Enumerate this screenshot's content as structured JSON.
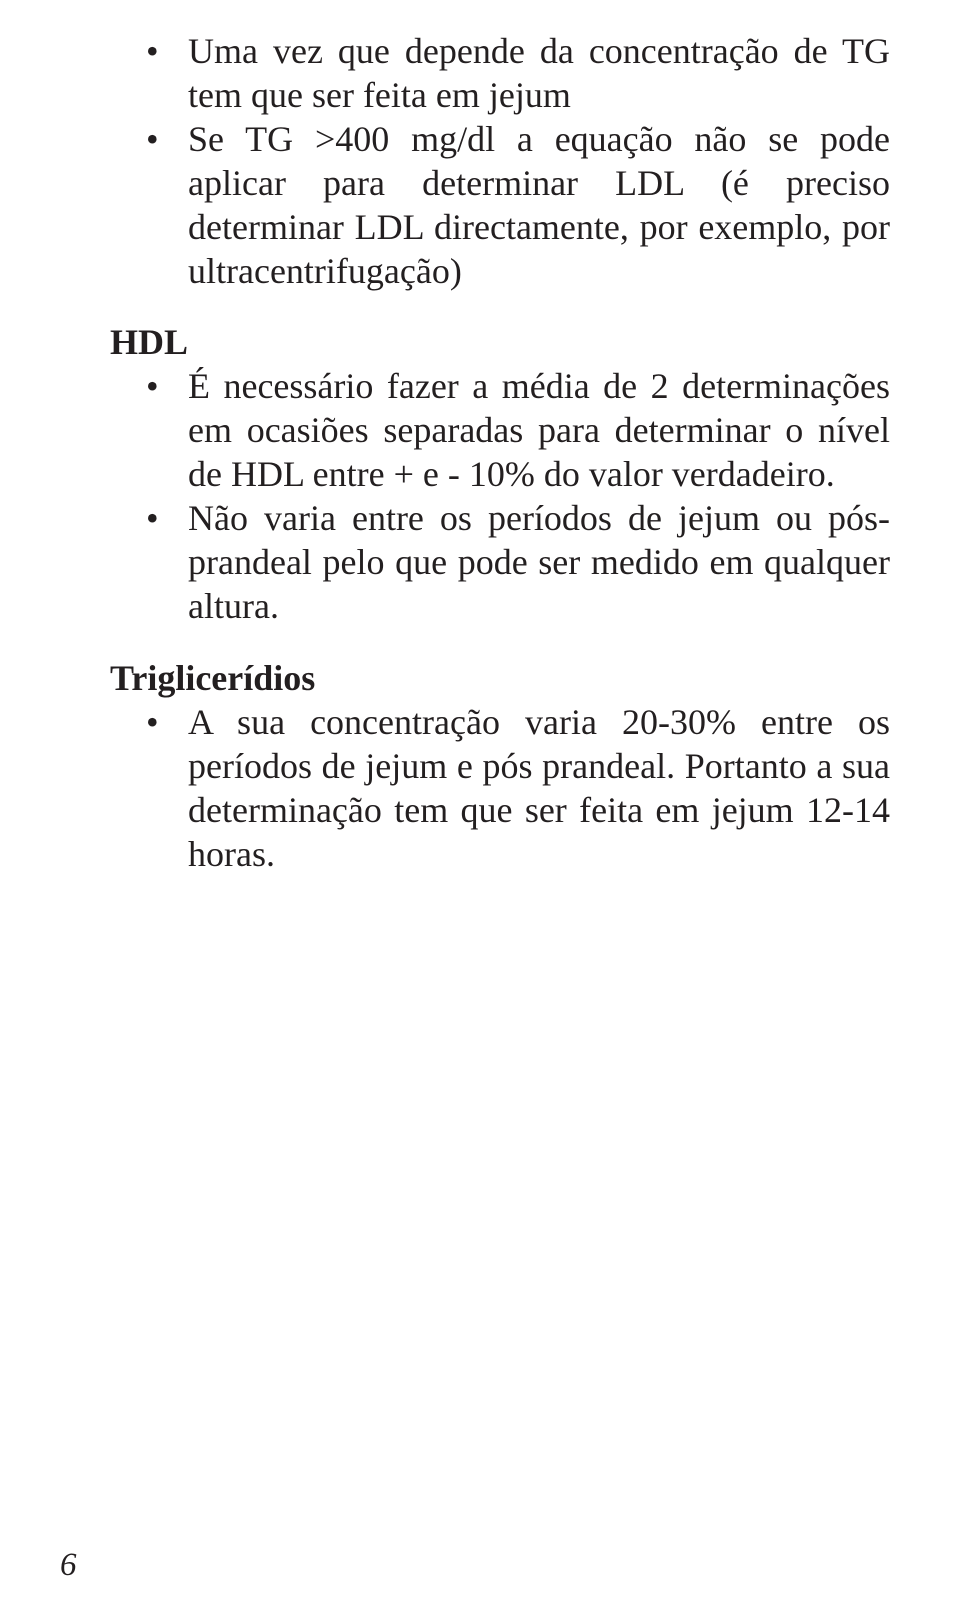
{
  "page": {
    "background_color": "#ffffff",
    "text_color": "#231f20",
    "font_family": "Times New Roman",
    "base_fontsize_pt": 27
  },
  "section1": {
    "bullets": [
      "Uma vez que depende da concentração de TG tem que ser feita em jejum",
      "Se TG >400 mg/dl a equação não se pode aplicar para determinar LDL (é preciso determinar LDL directamente, por exemplo, por ultracentrifugação)"
    ]
  },
  "section2": {
    "heading": "HDL",
    "bullets": [
      "É necessário fazer a média de 2 determinações em ocasiões separadas para determinar o nível de HDL entre + e - 10% do valor verdadeiro.",
      "Não varia entre os períodos de jejum ou pós-prandeal pelo que pode ser medido em qualquer altura."
    ]
  },
  "section3": {
    "heading": "Triglicerídios",
    "bullets": [
      "A sua concentração varia 20-30% entre os períodos de jejum e pós prandeal. Portanto a sua determinação tem que ser feita em jejum 12-14 horas."
    ]
  },
  "page_number": "6"
}
